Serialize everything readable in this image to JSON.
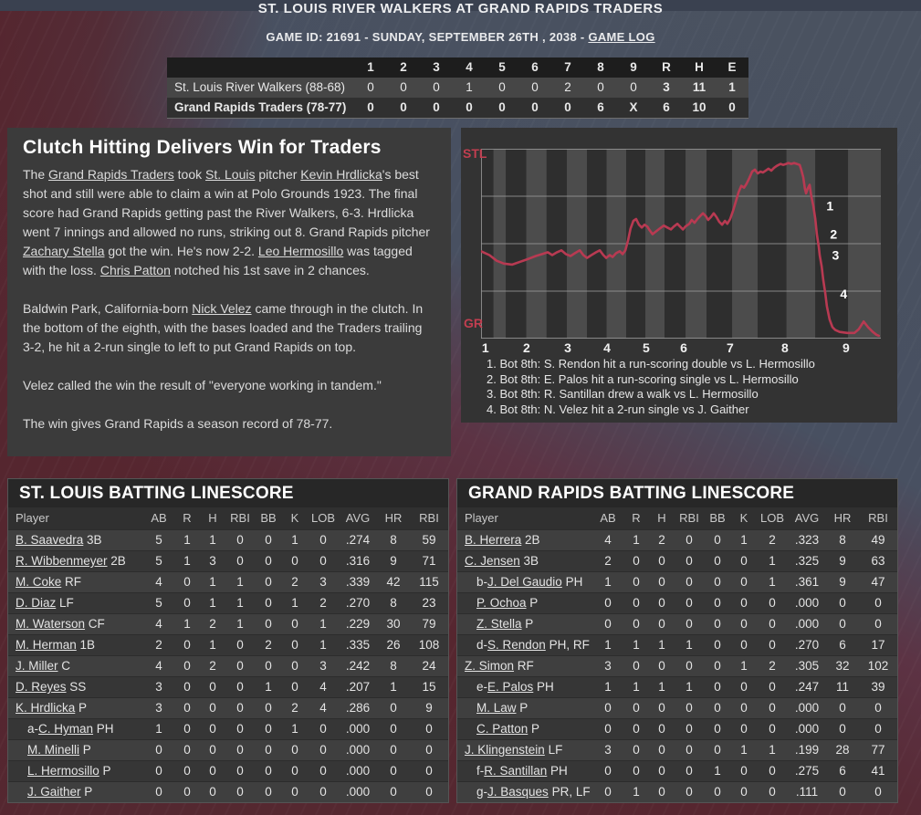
{
  "accent_red": "#c23e50",
  "header": {
    "title": "ST. LOUIS RIVER WALKERS AT GRAND RAPIDS TRADERS",
    "subtitle_prefix": "GAME ID: 21691 - SUNDAY, SEPTEMBER 26TH , 2038 - ",
    "game_log_link": "GAME LOG"
  },
  "linescore": {
    "columns": [
      "1",
      "2",
      "3",
      "4",
      "5",
      "6",
      "7",
      "8",
      "9",
      "R",
      "H",
      "E"
    ],
    "rows": [
      {
        "team": "St. Louis River Walkers (88-68)",
        "innings": [
          "0",
          "0",
          "0",
          "1",
          "0",
          "0",
          "2",
          "0",
          "0"
        ],
        "r": "3",
        "h": "11",
        "e": "1",
        "bold": false
      },
      {
        "team": "Grand Rapids Traders (78-77)",
        "innings": [
          "0",
          "0",
          "0",
          "0",
          "0",
          "0",
          "0",
          "6",
          "X"
        ],
        "r": "6",
        "h": "10",
        "e": "0",
        "bold": true
      }
    ]
  },
  "article": {
    "headline": "Clutch Hitting Delivers Win for Traders",
    "paragraphs": [
      [
        {
          "t": "The "
        },
        {
          "t": "Grand Rapids Traders",
          "link": true
        },
        {
          "t": " took "
        },
        {
          "t": "St. Louis",
          "link": true
        },
        {
          "t": " pitcher "
        },
        {
          "t": "Kevin Hrdlicka",
          "link": true
        },
        {
          "t": "'s best shot and still were able to claim a win at Polo Grounds 1923. The final score had Grand Rapids getting past the River Walkers, 6-3. Hrdlicka went 7 innings and allowed no runs, striking out 8. Grand Rapids pitcher "
        },
        {
          "t": "Zachary Stella",
          "link": true
        },
        {
          "t": " got the win. He's now 2-2. "
        },
        {
          "t": "Leo Hermosillo",
          "link": true
        },
        {
          "t": " was tagged with the loss. "
        },
        {
          "t": "Chris Patton",
          "link": true
        },
        {
          "t": " notched his 1st save in 2 chances."
        }
      ],
      [
        {
          "t": "Baldwin Park, California-born "
        },
        {
          "t": "Nick Velez",
          "link": true
        },
        {
          "t": " came through in the clutch. In the bottom of the eighth, with the bases loaded and the Traders trailing 3-2, he hit a 2-run single to left to put Grand Rapids on top."
        }
      ],
      [
        {
          "t": "Velez called the win the result of \"everyone working in tandem.\""
        }
      ],
      [
        {
          "t": "The win gives Grand Rapids a season record of 78-77."
        }
      ]
    ]
  },
  "chart_data": {
    "type": "line",
    "title": "Win probability by play",
    "y_top_label": "STL",
    "y_bottom_label": "GR",
    "ylim": [
      0,
      100
    ],
    "grid_p": [
      0,
      25,
      50,
      75,
      100
    ],
    "colors": {
      "band_dark": "#2e2e2e",
      "band_light": "#4c4c4c",
      "grid": "#969696",
      "line": "#b83a52",
      "marker": "#ffffff"
    },
    "x_labels": [
      {
        "label": "1",
        "t": 0.011
      },
      {
        "label": "2",
        "t": 0.114
      },
      {
        "label": "3",
        "t": 0.217
      },
      {
        "label": "4",
        "t": 0.315
      },
      {
        "label": "5",
        "t": 0.413
      },
      {
        "label": "6",
        "t": 0.507
      },
      {
        "label": "7",
        "t": 0.623
      },
      {
        "label": "8",
        "t": 0.76
      },
      {
        "label": "9",
        "t": 0.913
      }
    ],
    "band_edges_t": [
      0,
      0.062,
      0.164,
      0.265,
      0.363,
      0.459,
      0.564,
      0.692,
      0.836,
      1.0
    ],
    "points": [
      [
        0.0,
        46
      ],
      [
        0.021,
        44
      ],
      [
        0.039,
        41
      ],
      [
        0.057,
        39.5
      ],
      [
        0.078,
        39
      ],
      [
        0.098,
        40.5
      ],
      [
        0.119,
        42
      ],
      [
        0.137,
        43.5
      ],
      [
        0.153,
        44.5
      ],
      [
        0.167,
        45.5
      ],
      [
        0.178,
        44
      ],
      [
        0.19,
        45.5
      ],
      [
        0.201,
        46.5
      ],
      [
        0.212,
        44.5
      ],
      [
        0.224,
        43.5
      ],
      [
        0.235,
        45
      ],
      [
        0.247,
        46.5
      ],
      [
        0.256,
        44
      ],
      [
        0.265,
        42.5
      ],
      [
        0.276,
        44
      ],
      [
        0.288,
        45.5
      ],
      [
        0.297,
        46.5
      ],
      [
        0.306,
        44
      ],
      [
        0.313,
        42.5
      ],
      [
        0.322,
        44
      ],
      [
        0.329,
        43
      ],
      [
        0.338,
        45
      ],
      [
        0.347,
        46
      ],
      [
        0.354,
        44.5
      ],
      [
        0.361,
        46.5
      ],
      [
        0.368,
        52
      ],
      [
        0.374,
        58
      ],
      [
        0.381,
        62
      ],
      [
        0.388,
        63
      ],
      [
        0.395,
        60
      ],
      [
        0.402,
        58.5
      ],
      [
        0.409,
        60
      ],
      [
        0.416,
        59
      ],
      [
        0.422,
        57
      ],
      [
        0.429,
        55
      ],
      [
        0.438,
        56.5
      ],
      [
        0.447,
        58
      ],
      [
        0.457,
        59.5
      ],
      [
        0.466,
        58.5
      ],
      [
        0.475,
        57.5
      ],
      [
        0.482,
        59
      ],
      [
        0.491,
        60.5
      ],
      [
        0.498,
        59
      ],
      [
        0.505,
        57.5
      ],
      [
        0.511,
        59
      ],
      [
        0.521,
        60.5
      ],
      [
        0.527,
        62.5
      ],
      [
        0.534,
        61
      ],
      [
        0.541,
        63
      ],
      [
        0.548,
        64.5
      ],
      [
        0.555,
        66
      ],
      [
        0.562,
        64.5
      ],
      [
        0.568,
        62.5
      ],
      [
        0.575,
        64
      ],
      [
        0.582,
        66
      ],
      [
        0.589,
        64
      ],
      [
        0.596,
        61.5
      ],
      [
        0.603,
        60
      ],
      [
        0.61,
        62
      ],
      [
        0.616,
        60.5
      ],
      [
        0.623,
        63
      ],
      [
        0.63,
        67
      ],
      [
        0.637,
        72
      ],
      [
        0.644,
        77
      ],
      [
        0.651,
        80.5
      ],
      [
        0.658,
        79.5
      ],
      [
        0.664,
        81.5
      ],
      [
        0.671,
        84.5
      ],
      [
        0.678,
        88
      ],
      [
        0.685,
        89
      ],
      [
        0.692,
        87
      ],
      [
        0.699,
        88
      ],
      [
        0.705,
        87.5
      ],
      [
        0.712,
        88.5
      ],
      [
        0.719,
        89.5
      ],
      [
        0.726,
        88.5
      ],
      [
        0.733,
        90
      ],
      [
        0.74,
        91
      ],
      [
        0.749,
        92
      ],
      [
        0.756,
        91.5
      ],
      [
        0.763,
        92
      ],
      [
        0.769,
        92.5
      ],
      [
        0.776,
        92
      ],
      [
        0.783,
        92.5
      ],
      [
        0.79,
        92
      ],
      [
        0.797,
        91.5
      ],
      [
        0.801,
        89
      ],
      [
        0.806,
        85
      ],
      [
        0.81,
        79
      ],
      [
        0.813,
        76.5
      ],
      [
        0.817,
        79
      ],
      [
        0.822,
        81
      ],
      [
        0.826,
        75
      ],
      [
        0.831,
        70
      ],
      [
        0.836,
        63
      ],
      [
        0.84,
        55
      ],
      [
        0.845,
        48
      ],
      [
        0.847,
        44
      ],
      [
        0.852,
        38
      ],
      [
        0.856,
        31
      ],
      [
        0.861,
        24
      ],
      [
        0.865,
        17
      ],
      [
        0.872,
        10
      ],
      [
        0.879,
        6
      ],
      [
        0.886,
        4.5
      ],
      [
        0.897,
        3.5
      ],
      [
        0.916,
        3
      ],
      [
        0.934,
        3
      ],
      [
        0.945,
        5
      ],
      [
        0.957,
        9
      ],
      [
        0.968,
        6
      ],
      [
        0.98,
        3.5
      ],
      [
        0.989,
        2
      ],
      [
        0.995,
        1.5
      ]
    ],
    "markers": [
      {
        "label": "1",
        "t": 0.848,
        "p": 70
      },
      {
        "label": "2",
        "t": 0.857,
        "p": 55
      },
      {
        "label": "3",
        "t": 0.862,
        "p": 44
      },
      {
        "label": "4",
        "t": 0.882,
        "p": 23.5
      }
    ],
    "annotations": [
      "1. Bot 8th: S. Rendon hit a run-scoring double vs L. Hermosillo",
      "2. Bot 8th: E. Palos hit a run-scoring single vs L. Hermosillo",
      "3. Bot 8th: R. Santillan drew a walk vs L. Hermosillo",
      "4. Bot 8th: N. Velez hit a 2-run single vs J. Gaither"
    ]
  },
  "batting_tables": [
    {
      "title": "ST. LOUIS BATTING LINESCORE",
      "columns": [
        "Player",
        "AB",
        "R",
        "H",
        "RBI",
        "BB",
        "K",
        "LOB",
        "AVG",
        "HR",
        "RBI"
      ],
      "rows": [
        {
          "prefix": "",
          "name": "B. Saavedra",
          "pos": "3B",
          "indent": false,
          "stats": [
            "5",
            "1",
            "1",
            "0",
            "0",
            "1",
            "0",
            ".274",
            "8",
            "59"
          ]
        },
        {
          "prefix": "",
          "name": "R. Wibbenmeyer",
          "pos": "2B",
          "indent": false,
          "stats": [
            "5",
            "1",
            "3",
            "0",
            "0",
            "0",
            "0",
            ".316",
            "9",
            "71"
          ]
        },
        {
          "prefix": "",
          "name": "M. Coke",
          "pos": "RF",
          "indent": false,
          "stats": [
            "4",
            "0",
            "1",
            "1",
            "0",
            "2",
            "3",
            ".339",
            "42",
            "115"
          ]
        },
        {
          "prefix": "",
          "name": "D. Diaz",
          "pos": "LF",
          "indent": false,
          "stats": [
            "5",
            "0",
            "1",
            "1",
            "0",
            "1",
            "2",
            ".270",
            "8",
            "23"
          ]
        },
        {
          "prefix": "",
          "name": "M. Waterson",
          "pos": "CF",
          "indent": false,
          "stats": [
            "4",
            "1",
            "2",
            "1",
            "0",
            "0",
            "1",
            ".229",
            "30",
            "79"
          ]
        },
        {
          "prefix": "",
          "name": "M. Herman",
          "pos": "1B",
          "indent": false,
          "stats": [
            "2",
            "0",
            "1",
            "0",
            "2",
            "0",
            "1",
            ".335",
            "26",
            "108"
          ]
        },
        {
          "prefix": "",
          "name": "J. Miller",
          "pos": "C",
          "indent": false,
          "stats": [
            "4",
            "0",
            "2",
            "0",
            "0",
            "0",
            "3",
            ".242",
            "8",
            "24"
          ]
        },
        {
          "prefix": "",
          "name": "D. Reyes",
          "pos": "SS",
          "indent": false,
          "stats": [
            "3",
            "0",
            "0",
            "0",
            "1",
            "0",
            "4",
            ".207",
            "1",
            "15"
          ]
        },
        {
          "prefix": "",
          "name": "K. Hrdlicka",
          "pos": "P",
          "indent": false,
          "stats": [
            "3",
            "0",
            "0",
            "0",
            "0",
            "2",
            "4",
            ".286",
            "0",
            "9"
          ]
        },
        {
          "prefix": "a-",
          "name": "C. Hyman",
          "pos": "PH",
          "indent": true,
          "stats": [
            "1",
            "0",
            "0",
            "0",
            "0",
            "1",
            "0",
            ".000",
            "0",
            "0"
          ]
        },
        {
          "prefix": "",
          "name": "M. Minelli",
          "pos": "P",
          "indent": true,
          "stats": [
            "0",
            "0",
            "0",
            "0",
            "0",
            "0",
            "0",
            ".000",
            "0",
            "0"
          ]
        },
        {
          "prefix": "",
          "name": "L. Hermosillo",
          "pos": "P",
          "indent": true,
          "stats": [
            "0",
            "0",
            "0",
            "0",
            "0",
            "0",
            "0",
            ".000",
            "0",
            "0"
          ]
        },
        {
          "prefix": "",
          "name": "J. Gaither",
          "pos": "P",
          "indent": true,
          "stats": [
            "0",
            "0",
            "0",
            "0",
            "0",
            "0",
            "0",
            ".000",
            "0",
            "0"
          ]
        }
      ]
    },
    {
      "title": "GRAND RAPIDS BATTING LINESCORE",
      "columns": [
        "Player",
        "AB",
        "R",
        "H",
        "RBI",
        "BB",
        "K",
        "LOB",
        "AVG",
        "HR",
        "RBI"
      ],
      "rows": [
        {
          "prefix": "",
          "name": "B. Herrera",
          "pos": "2B",
          "indent": false,
          "stats": [
            "4",
            "1",
            "2",
            "0",
            "0",
            "1",
            "2",
            ".323",
            "8",
            "49"
          ]
        },
        {
          "prefix": "",
          "name": "C. Jensen",
          "pos": "3B",
          "indent": false,
          "stats": [
            "2",
            "0",
            "0",
            "0",
            "0",
            "0",
            "1",
            ".325",
            "9",
            "63"
          ]
        },
        {
          "prefix": "b-",
          "name": "J. Del Gaudio",
          "pos": "PH",
          "indent": true,
          "stats": [
            "1",
            "0",
            "0",
            "0",
            "0",
            "0",
            "1",
            ".361",
            "9",
            "47"
          ]
        },
        {
          "prefix": "",
          "name": "P. Ochoa",
          "pos": "P",
          "indent": true,
          "stats": [
            "0",
            "0",
            "0",
            "0",
            "0",
            "0",
            "0",
            ".000",
            "0",
            "0"
          ]
        },
        {
          "prefix": "",
          "name": "Z. Stella",
          "pos": "P",
          "indent": true,
          "stats": [
            "0",
            "0",
            "0",
            "0",
            "0",
            "0",
            "0",
            ".000",
            "0",
            "0"
          ]
        },
        {
          "prefix": "d-",
          "name": "S. Rendon",
          "pos": "PH, RF",
          "indent": true,
          "stats": [
            "1",
            "1",
            "1",
            "1",
            "0",
            "0",
            "0",
            ".270",
            "6",
            "17"
          ]
        },
        {
          "prefix": "",
          "name": "Z. Simon",
          "pos": "RF",
          "indent": false,
          "stats": [
            "3",
            "0",
            "0",
            "0",
            "0",
            "1",
            "2",
            ".305",
            "32",
            "102"
          ]
        },
        {
          "prefix": "e-",
          "name": "E. Palos",
          "pos": "PH",
          "indent": true,
          "stats": [
            "1",
            "1",
            "1",
            "1",
            "0",
            "0",
            "0",
            ".247",
            "11",
            "39"
          ]
        },
        {
          "prefix": "",
          "name": "M. Law",
          "pos": "P",
          "indent": true,
          "stats": [
            "0",
            "0",
            "0",
            "0",
            "0",
            "0",
            "0",
            ".000",
            "0",
            "0"
          ]
        },
        {
          "prefix": "",
          "name": "C. Patton",
          "pos": "P",
          "indent": true,
          "stats": [
            "0",
            "0",
            "0",
            "0",
            "0",
            "0",
            "0",
            ".000",
            "0",
            "0"
          ]
        },
        {
          "prefix": "",
          "name": "J. Klingenstein",
          "pos": "LF",
          "indent": false,
          "stats": [
            "3",
            "0",
            "0",
            "0",
            "0",
            "1",
            "1",
            ".199",
            "28",
            "77"
          ]
        },
        {
          "prefix": "f-",
          "name": "R. Santillan",
          "pos": "PH",
          "indent": true,
          "stats": [
            "0",
            "0",
            "0",
            "0",
            "1",
            "0",
            "0",
            ".275",
            "6",
            "41"
          ]
        },
        {
          "prefix": "g-",
          "name": "J. Basques",
          "pos": "PR, LF",
          "indent": true,
          "stats": [
            "0",
            "1",
            "0",
            "0",
            "0",
            "0",
            "0",
            ".111",
            "0",
            "0"
          ]
        }
      ]
    }
  ]
}
